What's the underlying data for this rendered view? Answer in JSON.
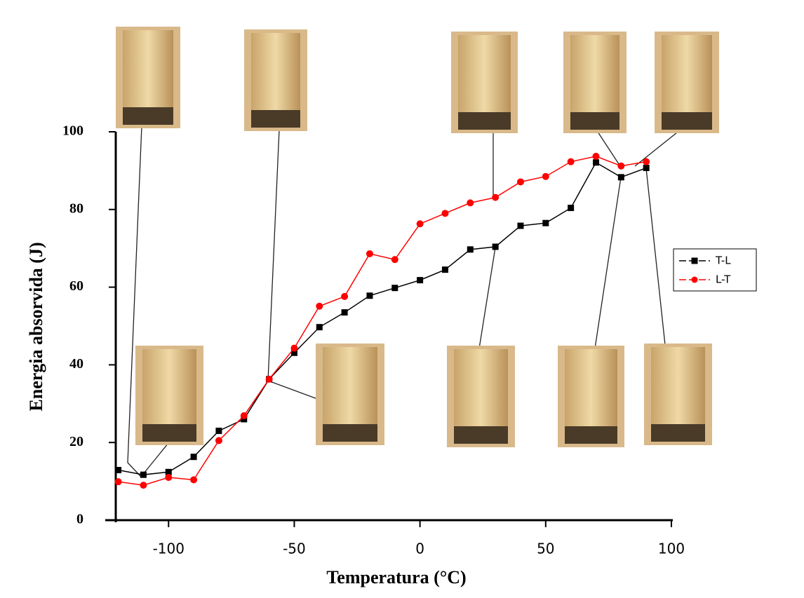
{
  "chart_data": {
    "type": "line",
    "x_label": "Temperatura (°C)",
    "y_label": "Energia absorvida (J)",
    "x": [
      -120,
      -110,
      -100,
      -90,
      -80,
      -70,
      -60,
      -50,
      -40,
      -30,
      -20,
      -10,
      0,
      10,
      20,
      30,
      40,
      50,
      60,
      70,
      80,
      90
    ],
    "series": [
      {
        "name": "T-L",
        "color": "#000000",
        "marker": "square",
        "values": [
          12.9,
          11.7,
          12.4,
          16.3,
          23,
          26,
          36.3,
          43.1,
          49.7,
          53.5,
          57.8,
          59.8,
          61.8,
          64.5,
          69.7,
          70.4,
          75.8,
          76.5,
          80.4,
          92.1,
          88.3,
          90.7
        ]
      },
      {
        "name": "L-T",
        "color": "#ff0000",
        "marker": "circle",
        "values": [
          9.9,
          9.0,
          11,
          10.4,
          20.5,
          26.9,
          36.3,
          44.3,
          55.1,
          57.6,
          68.6,
          67.1,
          76.3,
          79,
          81.7,
          83.1,
          87.1,
          88.5,
          92.3,
          93.7,
          91.2,
          92.3
        ]
      }
    ],
    "xlim": [
      -121,
      100
    ],
    "ylim": [
      0,
      100
    ],
    "xticks": [
      -100,
      -50,
      0,
      50,
      100
    ],
    "yticks": [
      0,
      20,
      40,
      60,
      80,
      100
    ],
    "legend": "right"
  }
}
